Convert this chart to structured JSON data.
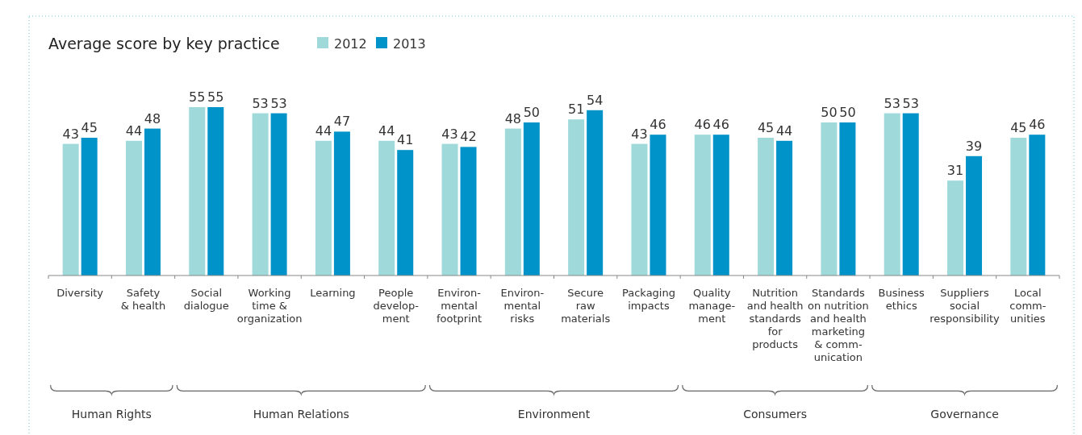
{
  "chart_data": {
    "type": "bar",
    "title": "Average score by key practice",
    "categories": [
      "Diversity",
      "Safety\n& health",
      "Social\ndialogue",
      "Working\ntime &\norganization",
      "Learning",
      "People\ndevelop-\nment",
      "Environ-\nmental\nfootprint",
      "Environ-\nmental\nrisks",
      "Secure\nraw\nmaterials",
      "Packaging\nimpacts",
      "Quality\nmanage-\nment",
      "Nutrition\nand health\nstandards\nfor\nproducts",
      "Standards\non nutrition\nand health\nmarketing\n& comm-\nunication",
      "Business\nethics",
      "Suppliers\nsocial\nresponsibility",
      "Local\ncomm-\nunities"
    ],
    "series": [
      {
        "name": "2012",
        "color": "#9fd9d9",
        "values": [
          43,
          44,
          55,
          53,
          44,
          44,
          43,
          48,
          51,
          43,
          46,
          45,
          50,
          53,
          31,
          45
        ]
      },
      {
        "name": "2013",
        "color": "#0093c9",
        "values": [
          45,
          48,
          55,
          53,
          47,
          41,
          42,
          50,
          54,
          46,
          46,
          44,
          50,
          53,
          39,
          46
        ]
      }
    ],
    "data_labels": true,
    "legend": "top left",
    "annotations": [
      "Human Rights",
      "Human Relations",
      "Environment",
      "Consumers",
      "Governance"
    ]
  }
}
